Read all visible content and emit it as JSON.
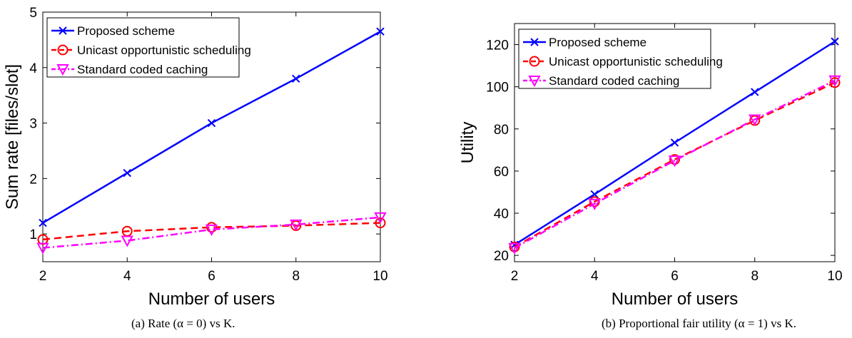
{
  "colors": {
    "proposed": "#0000ff",
    "unicast": "#ff0000",
    "standard": "#ff00ff"
  },
  "chart_data": [
    {
      "type": "line",
      "title": "",
      "caption": "(a) Rate (α = 0) vs K.",
      "xlabel": "Number of users",
      "ylabel": "Sum rate [files/slot]",
      "x": [
        2,
        4,
        6,
        8,
        10
      ],
      "xlim": [
        2,
        10
      ],
      "ylim": [
        0.5,
        5
      ],
      "xticks": [
        2,
        4,
        6,
        8,
        10
      ],
      "yticks": [
        1,
        2,
        3,
        4,
        5
      ],
      "grid": false,
      "legend_position": "top-left",
      "series": [
        {
          "name": "Proposed scheme",
          "values": [
            1.2,
            2.1,
            3.0,
            3.8,
            4.65
          ],
          "marker": "x",
          "style": "solid",
          "color_key": "proposed"
        },
        {
          "name": "Unicast opportunistic scheduling",
          "values": [
            0.9,
            1.05,
            1.12,
            1.15,
            1.2
          ],
          "marker": "o",
          "style": "dashed",
          "color_key": "unicast"
        },
        {
          "name": "Standard coded caching",
          "values": [
            0.75,
            0.88,
            1.08,
            1.17,
            1.3
          ],
          "marker": "v",
          "style": "dashdot",
          "color_key": "standard"
        }
      ]
    },
    {
      "type": "line",
      "title": "",
      "caption": "(b) Proportional fair utility (α = 1) vs K.",
      "xlabel": "Number of users",
      "ylabel": "Utility",
      "x": [
        2,
        4,
        6,
        8,
        10
      ],
      "xlim": [
        2,
        10
      ],
      "ylim": [
        17,
        130
      ],
      "xticks": [
        2,
        4,
        6,
        8,
        10
      ],
      "yticks": [
        20,
        40,
        60,
        80,
        100,
        120
      ],
      "grid": false,
      "legend_position": "top-left",
      "series": [
        {
          "name": "Proposed scheme",
          "values": [
            25,
            49,
            73.5,
            97.5,
            121.5
          ],
          "marker": "x",
          "style": "solid",
          "color_key": "proposed"
        },
        {
          "name": "Unicast opportunistic scheduling",
          "values": [
            24,
            45.5,
            65.5,
            84,
            102
          ],
          "marker": "o",
          "style": "dashed",
          "color_key": "unicast"
        },
        {
          "name": "Standard coded caching",
          "values": [
            23.5,
            44.5,
            65,
            84.5,
            103
          ],
          "marker": "v",
          "style": "dashdot",
          "color_key": "standard"
        }
      ]
    }
  ]
}
